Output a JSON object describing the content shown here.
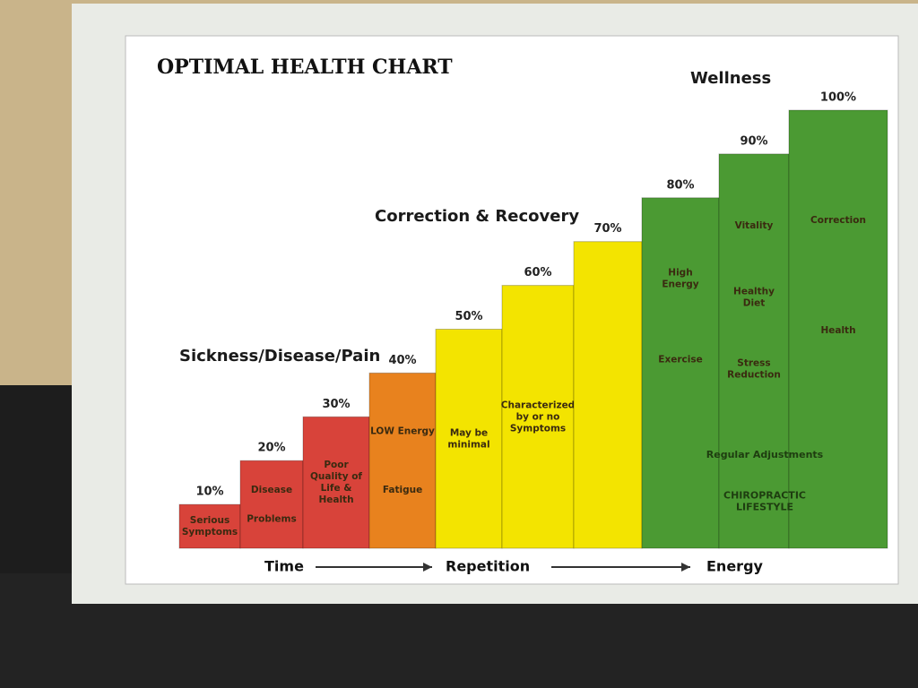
{
  "chart_data": {
    "type": "bar",
    "title": "OPTIMAL HEALTH CHART",
    "values": [
      10,
      20,
      30,
      40,
      50,
      60,
      70,
      80,
      90,
      100
    ],
    "value_labels": [
      "10%",
      "20%",
      "30%",
      "40%",
      "50%",
      "60%",
      "70%",
      "80%",
      "90%",
      "100%"
    ],
    "colors": [
      "#d8433a",
      "#d8433a",
      "#d8433a",
      "#e8821e",
      "#f3e400",
      "#f3e400",
      "#f3e400",
      "#4b9a33",
      "#4b9a33",
      "#4b9a33"
    ],
    "bar_notes": [
      [
        "Serious Symptoms"
      ],
      [
        "Disease",
        "Problems"
      ],
      [
        "Poor Quality of Life & Health"
      ],
      [
        "LOW Energy",
        "Fatigue"
      ],
      [
        "May be minimal"
      ],
      [
        "Characterized by or no Symptoms"
      ],
      [],
      [
        "High Energy",
        "Exercise"
      ],
      [
        "Vitality",
        "Healthy Diet",
        "Stress Reduction"
      ],
      [
        "Correction",
        "Health"
      ]
    ],
    "annotations": [
      "Sickness/Disease/Pain",
      "Correction & Recovery",
      "Wellness"
    ],
    "green_notes": [
      "Regular Adjustments",
      "CHIROPRACTIC LIFESTYLE"
    ],
    "x_labels": [
      "Time",
      "Repetition",
      "Energy"
    ]
  }
}
